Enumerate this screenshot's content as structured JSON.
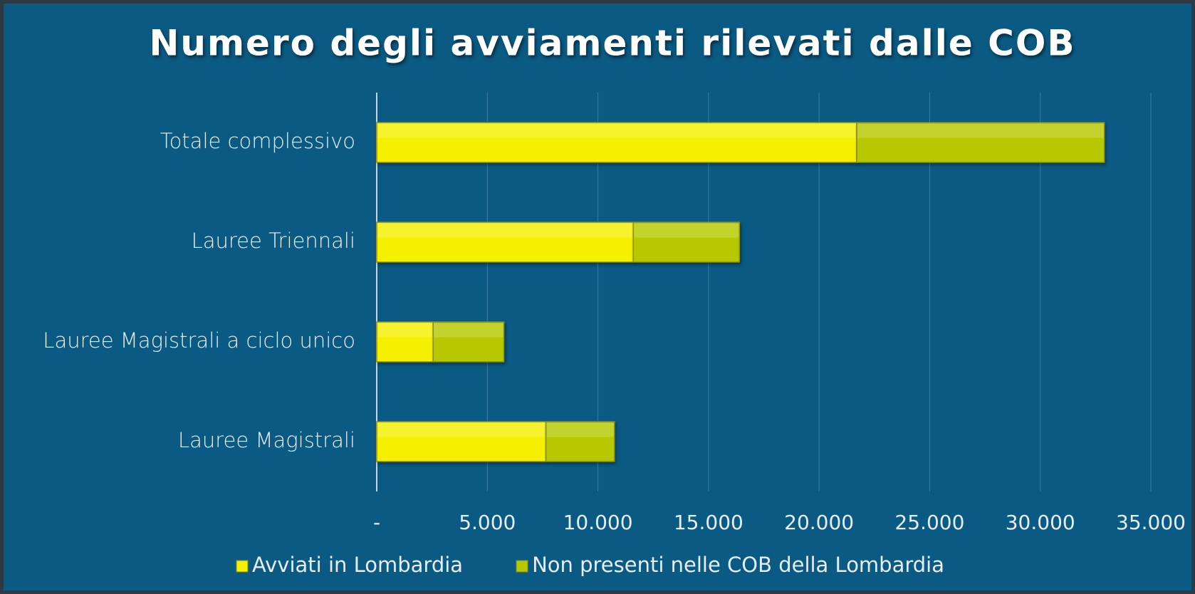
{
  "chart_data": {
    "type": "stacked-bar-horizontal",
    "title": "Numero degli avviamenti rilevati dalle COB",
    "categories": [
      "Totale complessivo",
      "Lauree Triennali",
      "Lauree Magistrali a ciclo unico",
      "Lauree Magistrali"
    ],
    "series": [
      {
        "name": "Avviati in Lombardia",
        "color": "#f5f000",
        "values": [
          21700,
          11600,
          2550,
          7650
        ]
      },
      {
        "name": "Non presenti nelle COB della Lombardia",
        "color": "#b8c800",
        "values": [
          11200,
          4800,
          3200,
          3100
        ]
      }
    ],
    "xlim": [
      0,
      35000
    ],
    "xticks": [
      {
        "value": 0,
        "label": "-"
      },
      {
        "value": 5000,
        "label": "5.000"
      },
      {
        "value": 10000,
        "label": "10.000"
      },
      {
        "value": 15000,
        "label": "15.000"
      },
      {
        "value": 20000,
        "label": "20.000"
      },
      {
        "value": 25000,
        "label": "25.000"
      },
      {
        "value": 30000,
        "label": "30.000"
      },
      {
        "value": 35000,
        "label": "35.000"
      }
    ],
    "grid": true,
    "legend": "bottom"
  }
}
